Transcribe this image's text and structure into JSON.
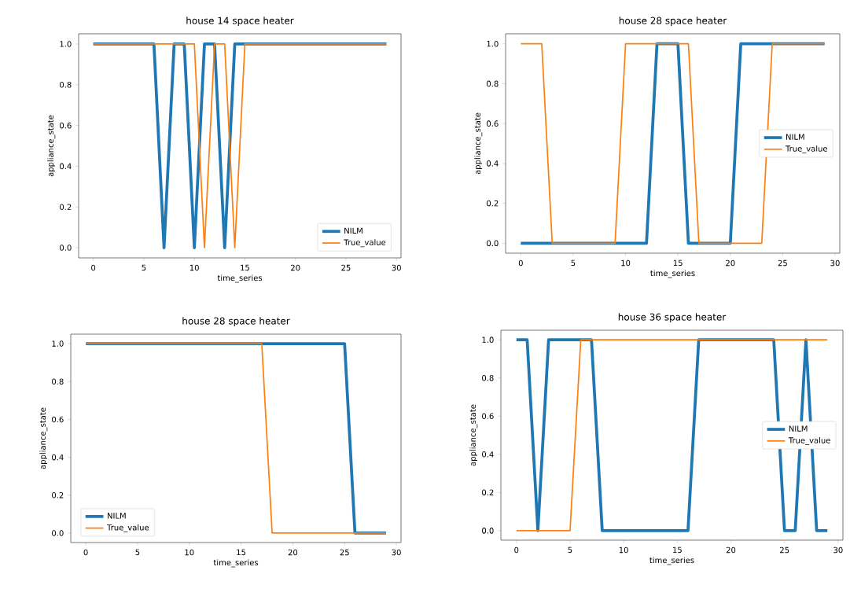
{
  "chart_data": [
    {
      "type": "line",
      "title": "house 14 space heater",
      "xlabel": "time_series",
      "ylabel": "appliance_state",
      "x": [
        0,
        1,
        2,
        3,
        4,
        5,
        6,
        7,
        8,
        9,
        10,
        11,
        12,
        13,
        14,
        15,
        16,
        17,
        18,
        19,
        20,
        21,
        22,
        23,
        24,
        25,
        26,
        27,
        28,
        29
      ],
      "series": [
        {
          "name": "NILM",
          "color": "#1f77b4",
          "values": [
            1,
            1,
            1,
            1,
            1,
            1,
            1,
            0,
            1,
            1,
            0,
            1,
            1,
            0,
            1,
            1,
            1,
            1,
            1,
            1,
            1,
            1,
            1,
            1,
            1,
            1,
            1,
            1,
            1,
            1
          ]
        },
        {
          "name": "True_value",
          "color": "#ff7f0e",
          "values": [
            1,
            1,
            1,
            1,
            1,
            1,
            1,
            1,
            1,
            1,
            1,
            0,
            1,
            1,
            0,
            1,
            1,
            1,
            1,
            1,
            1,
            1,
            1,
            1,
            1,
            1,
            1,
            1,
            1,
            1
          ]
        }
      ],
      "xlim": [
        -1.45,
        30.45
      ],
      "ylim": [
        -0.05,
        1.05
      ],
      "xticks": [
        0,
        5,
        10,
        15,
        20,
        25,
        30
      ],
      "yticks": [
        {
          "value": 0,
          "label": "0.0"
        },
        {
          "value": 0.2,
          "label": "0.2"
        },
        {
          "value": 0.4,
          "label": "0.4"
        },
        {
          "value": 0.6,
          "label": "0.6"
        },
        {
          "value": 0.8,
          "label": "0.8"
        },
        {
          "value": 1,
          "label": "1.0"
        }
      ],
      "legend": "bottom right",
      "grid": false,
      "marker": "none",
      "line_style": "solid"
    },
    {
      "type": "line",
      "title": "house 28 space heater",
      "xlabel": "time_series",
      "ylabel": "appliance_state",
      "x": [
        0,
        1,
        2,
        3,
        4,
        5,
        6,
        7,
        8,
        9,
        10,
        11,
        12,
        13,
        14,
        15,
        16,
        17,
        18,
        19,
        20,
        21,
        22,
        23,
        24,
        25,
        26,
        27,
        28,
        29
      ],
      "series": [
        {
          "name": "NILM",
          "color": "#1f77b4",
          "values": [
            0,
            0,
            0,
            0,
            0,
            0,
            0,
            0,
            0,
            0,
            0,
            0,
            0,
            1,
            1,
            1,
            0,
            0,
            0,
            0,
            0,
            1,
            1,
            1,
            1,
            1,
            1,
            1,
            1,
            1
          ]
        },
        {
          "name": "True_value",
          "color": "#ff7f0e",
          "values": [
            1,
            1,
            1,
            0,
            0,
            0,
            0,
            0,
            0,
            0,
            1,
            1,
            1,
            1,
            1,
            1,
            1,
            0,
            0,
            0,
            0,
            0,
            0,
            0,
            1,
            1,
            1,
            1,
            1,
            1
          ]
        }
      ],
      "xlim": [
        -1.45,
        30.45
      ],
      "ylim": [
        -0.05,
        1.05
      ],
      "xticks": [
        0,
        5,
        10,
        15,
        20,
        25,
        30
      ],
      "yticks": [
        {
          "value": 0,
          "label": "0.0"
        },
        {
          "value": 0.2,
          "label": "0.2"
        },
        {
          "value": 0.4,
          "label": "0.4"
        },
        {
          "value": 0.6,
          "label": "0.6"
        },
        {
          "value": 0.8,
          "label": "0.8"
        },
        {
          "value": 1,
          "label": "1.0"
        }
      ],
      "legend": "right",
      "grid": false,
      "marker": "none",
      "line_style": "solid"
    },
    {
      "type": "line",
      "title": "house 28 space heater",
      "xlabel": "time_series",
      "ylabel": "appliance_state",
      "x": [
        0,
        1,
        2,
        3,
        4,
        5,
        6,
        7,
        8,
        9,
        10,
        11,
        12,
        13,
        14,
        15,
        16,
        17,
        18,
        19,
        20,
        21,
        22,
        23,
        24,
        25,
        26,
        27,
        28,
        29
      ],
      "series": [
        {
          "name": "NILM",
          "color": "#1f77b4",
          "values": [
            1,
            1,
            1,
            1,
            1,
            1,
            1,
            1,
            1,
            1,
            1,
            1,
            1,
            1,
            1,
            1,
            1,
            1,
            1,
            1,
            1,
            1,
            1,
            1,
            1,
            1,
            0,
            0,
            0,
            0
          ]
        },
        {
          "name": "True_value",
          "color": "#ff7f0e",
          "values": [
            1,
            1,
            1,
            1,
            1,
            1,
            1,
            1,
            1,
            1,
            1,
            1,
            1,
            1,
            1,
            1,
            1,
            1,
            0,
            0,
            0,
            0,
            0,
            0,
            0,
            0,
            0,
            0,
            0,
            0
          ]
        }
      ],
      "xlim": [
        -1.45,
        30.45
      ],
      "ylim": [
        -0.05,
        1.05
      ],
      "xticks": [
        0,
        5,
        10,
        15,
        20,
        25,
        30
      ],
      "yticks": [
        {
          "value": 0,
          "label": "0.0"
        },
        {
          "value": 0.2,
          "label": "0.2"
        },
        {
          "value": 0.4,
          "label": "0.4"
        },
        {
          "value": 0.6,
          "label": "0.6"
        },
        {
          "value": 0.8,
          "label": "0.8"
        },
        {
          "value": 1,
          "label": "1.0"
        }
      ],
      "legend": "bottom left",
      "grid": false,
      "marker": "none",
      "line_style": "solid"
    },
    {
      "type": "line",
      "title": "house 36 space heater",
      "xlabel": "time_series",
      "ylabel": "appliance_state",
      "x": [
        0,
        1,
        2,
        3,
        4,
        5,
        6,
        7,
        8,
        9,
        10,
        11,
        12,
        13,
        14,
        15,
        16,
        17,
        18,
        19,
        20,
        21,
        22,
        23,
        24,
        25,
        26,
        27,
        28,
        29
      ],
      "series": [
        {
          "name": "NILM",
          "color": "#1f77b4",
          "values": [
            1,
            1,
            0,
            1,
            1,
            1,
            1,
            1,
            0,
            0,
            0,
            0,
            0,
            0,
            0,
            0,
            0,
            1,
            1,
            1,
            1,
            1,
            1,
            1,
            1,
            0,
            0,
            1,
            0,
            0
          ]
        },
        {
          "name": "True_value",
          "color": "#ff7f0e",
          "values": [
            0,
            0,
            0,
            0,
            0,
            0,
            1,
            1,
            1,
            1,
            1,
            1,
            1,
            1,
            1,
            1,
            1,
            1,
            1,
            1,
            1,
            1,
            1,
            1,
            1,
            1,
            1,
            1,
            1,
            1
          ]
        }
      ],
      "xlim": [
        -1.45,
        30.45
      ],
      "ylim": [
        -0.05,
        1.05
      ],
      "xticks": [
        0,
        5,
        10,
        15,
        20,
        25,
        30
      ],
      "yticks": [
        {
          "value": 0,
          "label": "0.0"
        },
        {
          "value": 0.2,
          "label": "0.2"
        },
        {
          "value": 0.4,
          "label": "0.4"
        },
        {
          "value": 0.6,
          "label": "0.6"
        },
        {
          "value": 0.8,
          "label": "0.8"
        },
        {
          "value": 1,
          "label": "1.0"
        }
      ],
      "legend": "right",
      "grid": false,
      "marker": "none",
      "line_style": "solid"
    }
  ]
}
